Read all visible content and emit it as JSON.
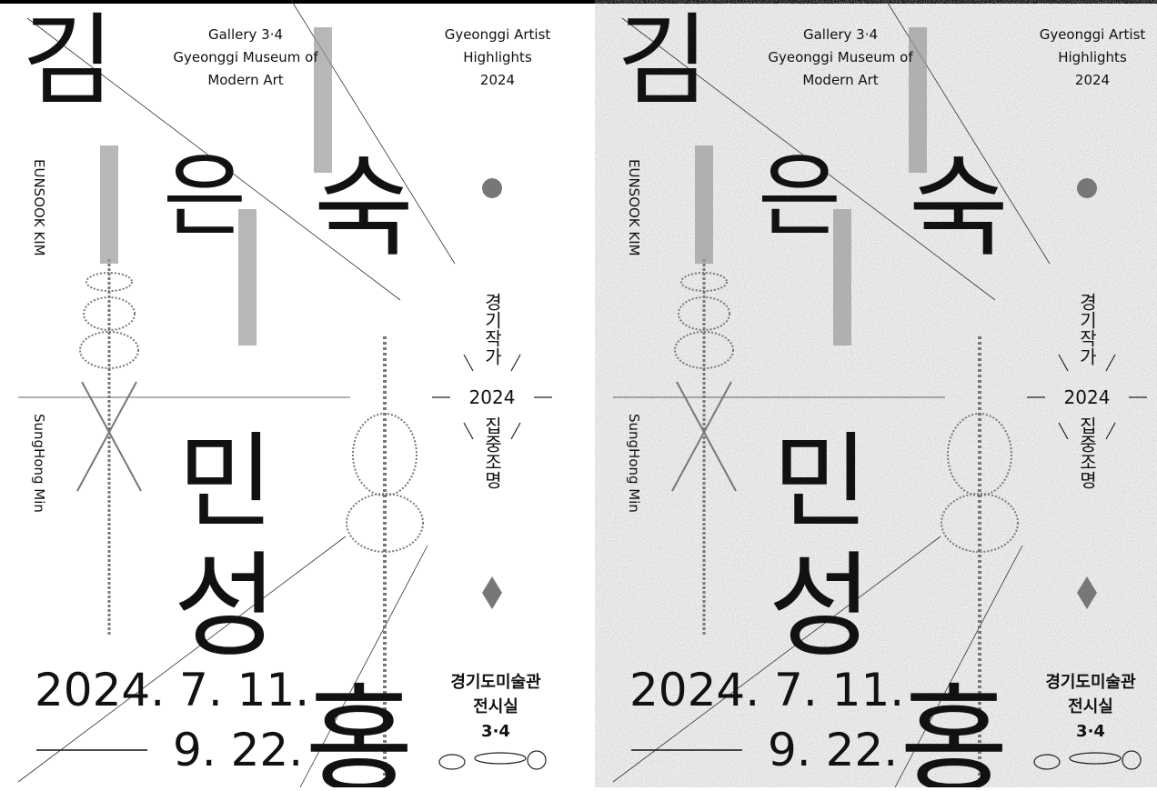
{
  "gallery": [
    "Gallery 3·4",
    "Gyeonggi Museum of",
    "Modern Art"
  ],
  "program": [
    "Gyeonggi Artist",
    "Highlights",
    "2024"
  ],
  "artist1": {
    "name_en": "EUNSOOK KIM",
    "name_ko": [
      "김",
      "은",
      "숙"
    ]
  },
  "artist2": {
    "name_en": "SungHong Min",
    "name_ko": [
      "민",
      "성",
      "홍"
    ]
  },
  "series_title": {
    "top": "경기작가",
    "year": "2024",
    "bottom": "집중조명"
  },
  "dates": {
    "start": "2024. 7. 11.",
    "end": "9. 22."
  },
  "venue": [
    "경기도미술관",
    "전시실",
    "3·4"
  ]
}
